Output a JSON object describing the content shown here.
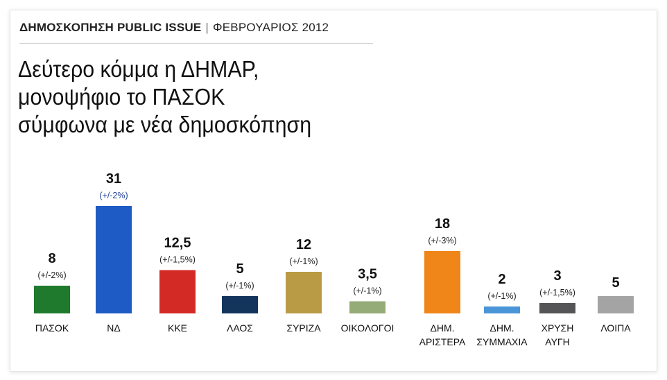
{
  "header": {
    "poll": "ΔΗΜΟΣΚΟΠΗΣΗ PUBLIC ISSUE",
    "separator": "|",
    "date": "ΦΕΒΡΟΥΑΡΙΟΣ 2012"
  },
  "title_lines": [
    "Δεύτερο κόμμα η ΔΗΜΑΡ,",
    "μονοψήφιο το ΠΑΣΟΚ",
    "σύμφωνα με νέα δημοσκόπηση"
  ],
  "chart_data": {
    "type": "bar",
    "title": "Δεύτερο κόμμα η ΔΗΜΑΡ, μονοψήφιο το ΠΑΣΟΚ σύμφωνα με νέα δημοσκόπηση",
    "grid": false,
    "legend": "none",
    "ylim": [
      0,
      31
    ],
    "categories": [
      [
        "ΠΑΣΟΚ"
      ],
      [
        "ΝΔ"
      ],
      [
        "ΚΚΕ"
      ],
      [
        "ΛΑΟΣ"
      ],
      [
        "ΣΥΡΙΖΑ"
      ],
      [
        "ΟΙΚΟΛΟΓΟΙ"
      ],
      [
        "ΔΗΜ.",
        "ΑΡΙΣΤΕΡΑ"
      ],
      [
        "ΔΗΜ.",
        "ΣΥΜΜΑΧΙΑ"
      ],
      [
        "ΧΡΥΣΗ",
        "ΑΥΓΗ"
      ],
      [
        "ΛΟΙΠΑ"
      ]
    ],
    "values": [
      8,
      31,
      12.5,
      5,
      12,
      3.5,
      18,
      2,
      3,
      5
    ],
    "value_labels": [
      "8",
      "31",
      "12,5",
      "5",
      "12",
      "3,5",
      "18",
      "2",
      "3",
      "5"
    ],
    "margins": [
      "(+/-2%)",
      "(+/-2%)",
      "(+/-1,5%)",
      "(+/-1%)",
      "(+/-1%)",
      "(+/-1%)",
      "(+/-3%)",
      "(+/-1%)",
      "(+/-1,5%)",
      ""
    ],
    "colors": [
      "#1f7a2e",
      "#1f5bc4",
      "#d42a26",
      "#13355c",
      "#b99a45",
      "#95ab78",
      "#f08519",
      "#4a95d8",
      "#555558",
      "#a4a4a4"
    ],
    "margin_colors": [
      "#222222",
      "#1f3f94",
      "#222222",
      "#222222",
      "#222222",
      "#222222",
      "#222222",
      "#222222",
      "#222222",
      "#222222"
    ]
  }
}
